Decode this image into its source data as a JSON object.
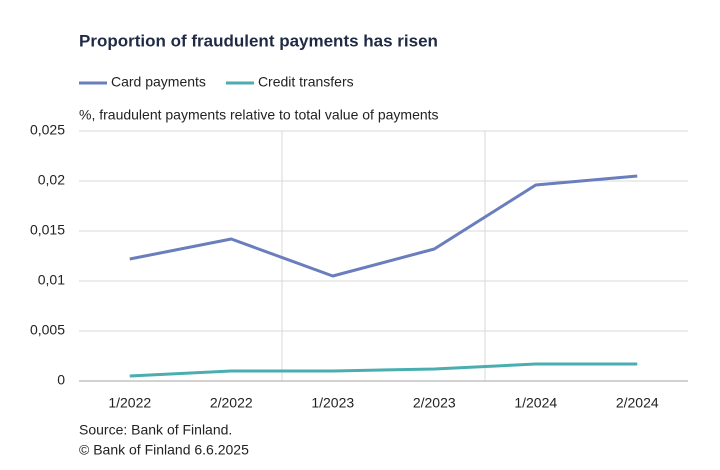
{
  "chart_data": {
    "type": "line",
    "title": "Proportion of fraudulent payments has risen",
    "subtitle": "%, fraudulent payments relative to total value of payments",
    "source": "Source: Bank of Finland.",
    "copyright": "© Bank of Finland 6.6.2025",
    "categories": [
      "1/2022",
      "2/2022",
      "1/2023",
      "2/2023",
      "1/2024",
      "2/2024"
    ],
    "series": [
      {
        "name": "Card payments",
        "color": "#6a7dbd",
        "values": [
          0.0122,
          0.0142,
          0.0105,
          0.0132,
          0.0196,
          0.0205
        ]
      },
      {
        "name": "Credit transfers",
        "color": "#4aaeb0",
        "values": [
          0.0005,
          0.001,
          0.001,
          0.0012,
          0.0017,
          0.0017
        ]
      }
    ],
    "ylim": [
      0,
      0.025
    ],
    "yticks": [
      0,
      {
        "value": 0.005,
        "label": "0,005"
      },
      {
        "value": 0.01,
        "label": "0,01"
      },
      {
        "value": 0.015,
        "label": "0,015"
      },
      {
        "value": 0.02,
        "label": "0,02"
      },
      {
        "value": 0.025,
        "label": "0,025"
      }
    ],
    "grid": true,
    "legend": "top"
  }
}
